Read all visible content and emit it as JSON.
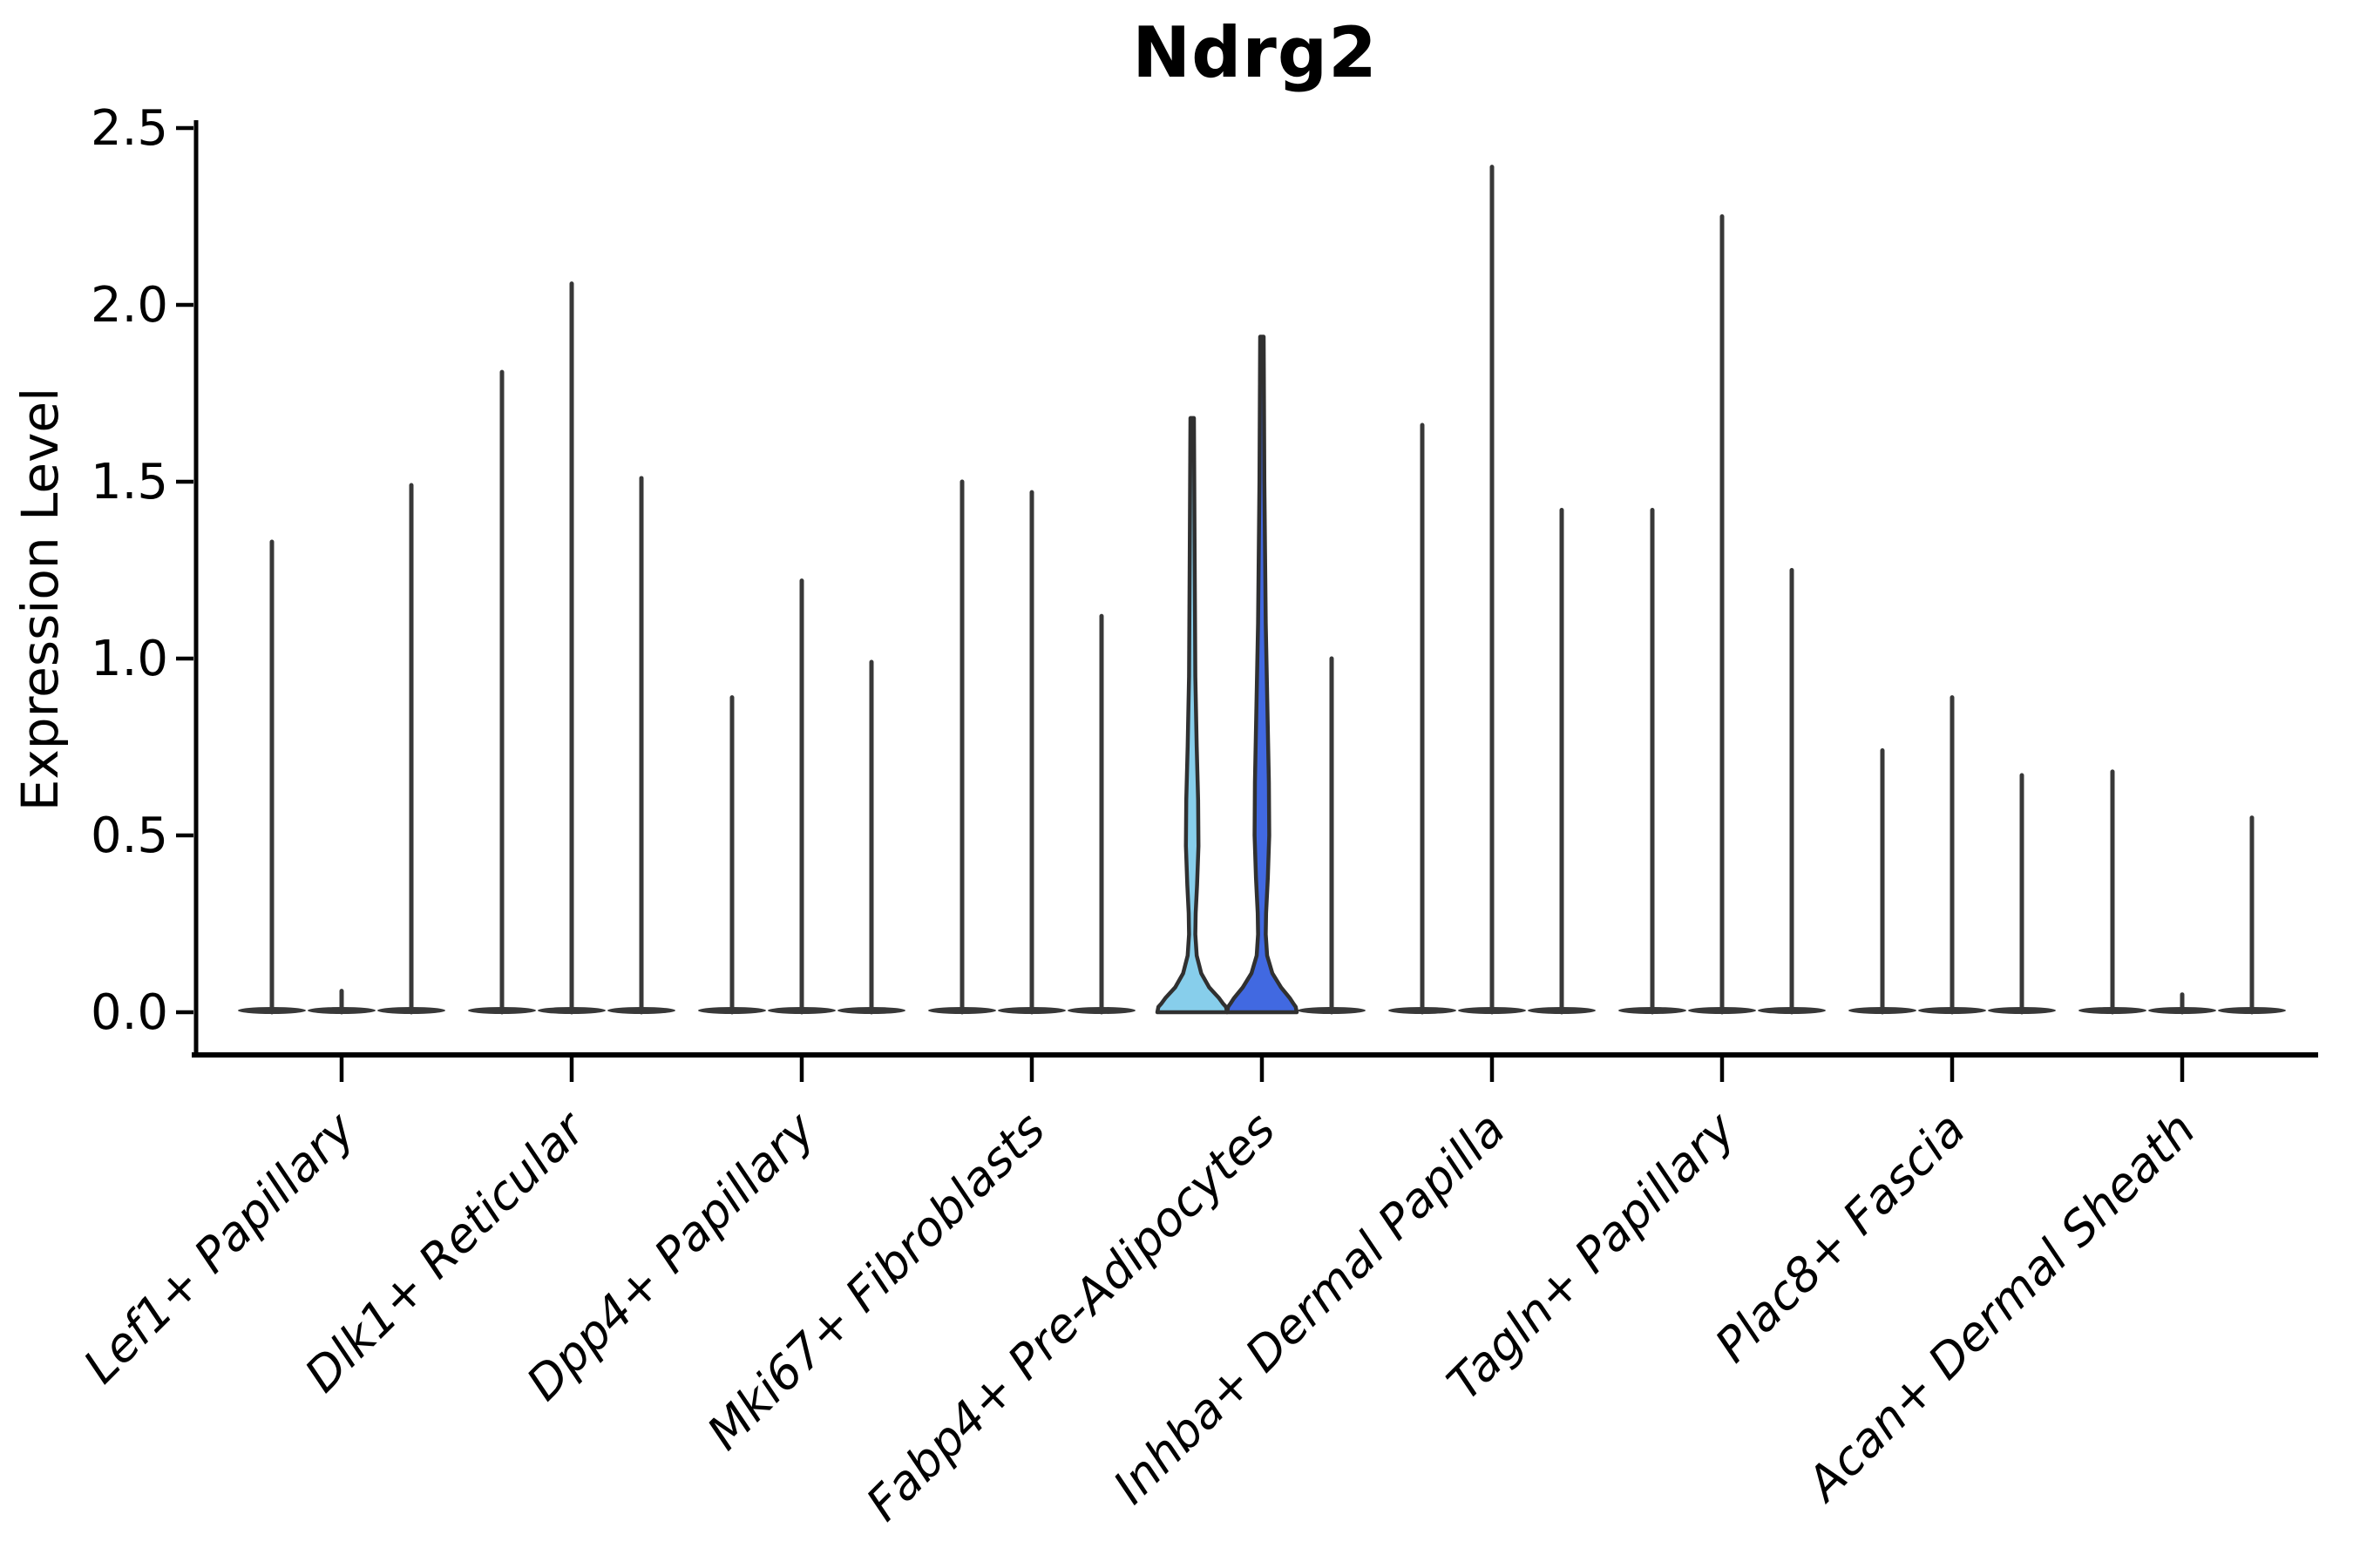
{
  "chart_data": {
    "type": "violin",
    "title": "Ndrg2",
    "ylabel": "Expression Level",
    "xlabel": "",
    "ylim": [
      0,
      2.5
    ],
    "yticks": [
      "0.0",
      "0.5",
      "1.0",
      "1.5",
      "2.0",
      "2.5"
    ],
    "ytick_values": [
      0,
      0.5,
      1.0,
      1.5,
      2.0,
      2.5
    ],
    "grid": false,
    "legend": "none",
    "violins_per_category": 3,
    "categories": [
      "Lef1+ Papillary",
      "Dlk1+ Reticular",
      "Dpp4+ Papillary",
      "Mki67+ Fibroblasts",
      "Fabp4+ Pre-Adipocytes",
      "Inhba+ Dermal Papilla",
      "Tagln+ Papillary",
      "Plac8+ Fascia",
      "Acan+ Dermal Sheath"
    ],
    "series": [
      {
        "category": "Lef1+ Papillary",
        "violins": [
          {
            "max": 1.33,
            "style": "spike"
          },
          {
            "max": 0.06,
            "style": "spike"
          },
          {
            "max": 1.49,
            "style": "spike"
          }
        ]
      },
      {
        "category": "Dlk1+ Reticular",
        "violins": [
          {
            "max": 1.81,
            "style": "spike"
          },
          {
            "max": 2.06,
            "style": "spike"
          },
          {
            "max": 1.51,
            "style": "spike"
          }
        ]
      },
      {
        "category": "Dpp4+ Papillary",
        "violins": [
          {
            "max": 0.89,
            "style": "spike"
          },
          {
            "max": 1.22,
            "style": "spike"
          },
          {
            "max": 0.99,
            "style": "spike"
          }
        ]
      },
      {
        "category": "Mki67+ Fibroblasts",
        "violins": [
          {
            "max": 1.5,
            "style": "spike"
          },
          {
            "max": 1.47,
            "style": "spike"
          },
          {
            "max": 1.12,
            "style": "spike"
          }
        ]
      },
      {
        "category": "Fabp4+ Pre-Adipocytes",
        "violins": [
          {
            "max": 1.68,
            "style": "filled",
            "fill": "#87CEEB",
            "profile": [
              [
                1.68,
                0.05
              ],
              [
                1.3,
                0.07
              ],
              [
                0.95,
                0.09
              ],
              [
                0.75,
                0.13
              ],
              [
                0.6,
                0.17
              ],
              [
                0.47,
                0.18
              ],
              [
                0.36,
                0.14
              ],
              [
                0.28,
                0.1
              ],
              [
                0.22,
                0.09
              ],
              [
                0.16,
                0.13
              ],
              [
                0.11,
                0.26
              ],
              [
                0.07,
                0.49
              ],
              [
                0.04,
                0.77
              ],
              [
                0.025,
                0.88
              ],
              [
                0.015,
                0.97
              ],
              [
                0.0,
                1.0
              ]
            ]
          },
          {
            "max": 1.91,
            "style": "filled",
            "fill": "#4169E1",
            "profile": [
              [
                1.91,
                0.05
              ],
              [
                1.5,
                0.07
              ],
              [
                1.1,
                0.11
              ],
              [
                0.85,
                0.16
              ],
              [
                0.65,
                0.2
              ],
              [
                0.5,
                0.21
              ],
              [
                0.38,
                0.17
              ],
              [
                0.28,
                0.12
              ],
              [
                0.22,
                0.11
              ],
              [
                0.16,
                0.15
              ],
              [
                0.11,
                0.3
              ],
              [
                0.07,
                0.55
              ],
              [
                0.04,
                0.8
              ],
              [
                0.025,
                0.9
              ],
              [
                0.015,
                0.97
              ],
              [
                0.0,
                1.0
              ]
            ]
          },
          {
            "max": 1.0,
            "style": "spike"
          }
        ]
      },
      {
        "category": "Inhba+ Dermal Papilla",
        "violins": [
          {
            "max": 1.66,
            "style": "spike"
          },
          {
            "max": 2.39,
            "style": "spike"
          },
          {
            "max": 1.42,
            "style": "spike"
          }
        ]
      },
      {
        "category": "Tagln+ Papillary",
        "violins": [
          {
            "max": 1.42,
            "style": "spike"
          },
          {
            "max": 2.25,
            "style": "spike"
          },
          {
            "max": 1.25,
            "style": "spike"
          }
        ]
      },
      {
        "category": "Plac8+ Fascia",
        "violins": [
          {
            "max": 0.74,
            "style": "spike"
          },
          {
            "max": 0.89,
            "style": "spike"
          },
          {
            "max": 0.67,
            "style": "spike"
          }
        ]
      },
      {
        "category": "Acan+ Dermal Sheath",
        "violins": [
          {
            "max": 0.68,
            "style": "spike"
          },
          {
            "max": 0.05,
            "style": "spike"
          },
          {
            "max": 0.55,
            "style": "spike"
          }
        ]
      }
    ],
    "highlight": {
      "category": "Fabp4+ Pre-Adipocytes",
      "fill_colors": [
        "#87CEEB",
        "#4169E1"
      ]
    },
    "colors": {
      "spike_violin": "#383838",
      "violin_outline": "#303030",
      "axis": "#000000",
      "text": "#000000",
      "background": "#ffffff"
    }
  }
}
